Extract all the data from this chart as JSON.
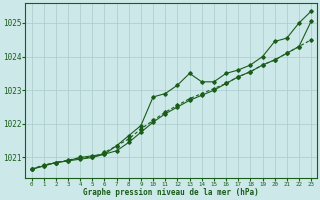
{
  "bg_color": "#cce8e8",
  "grid_color": "#aacccc",
  "line_color": "#1a5c1a",
  "xlabel": "Graphe pression niveau de la mer (hPa)",
  "xlim": [
    -0.5,
    23.5
  ],
  "ylim": [
    1020.4,
    1025.6
  ],
  "yticks": [
    1021,
    1022,
    1023,
    1024,
    1025
  ],
  "xticks": [
    0,
    1,
    2,
    3,
    4,
    5,
    6,
    7,
    8,
    9,
    10,
    11,
    12,
    13,
    14,
    15,
    16,
    17,
    18,
    19,
    20,
    21,
    22,
    23
  ],
  "series1": [
    1020.65,
    1020.75,
    1020.85,
    1020.9,
    1020.95,
    1021.0,
    1021.1,
    1021.35,
    1021.65,
    1021.95,
    1022.8,
    1022.9,
    1023.15,
    1023.5,
    1023.25,
    1023.25,
    1023.5,
    1023.6,
    1023.75,
    1024.0,
    1024.45,
    1024.55,
    1025.0,
    1025.35
  ],
  "series2_dashed": [
    1020.65,
    1020.78,
    1020.85,
    1020.92,
    1021.0,
    1021.0,
    1021.15,
    1021.35,
    1021.55,
    1021.85,
    1022.1,
    1022.35,
    1022.55,
    1022.75,
    1022.9,
    1023.05,
    1023.2,
    1023.4,
    1023.55,
    1023.75,
    1023.9,
    1024.1,
    1024.3,
    1024.5
  ],
  "series3": [
    1020.65,
    1020.75,
    1020.85,
    1020.9,
    1021.0,
    1021.05,
    1021.1,
    1021.2,
    1021.45,
    1021.75,
    1022.05,
    1022.3,
    1022.5,
    1022.7,
    1022.85,
    1023.0,
    1023.2,
    1023.4,
    1023.55,
    1023.75,
    1023.9,
    1024.1,
    1024.3,
    1025.05
  ]
}
